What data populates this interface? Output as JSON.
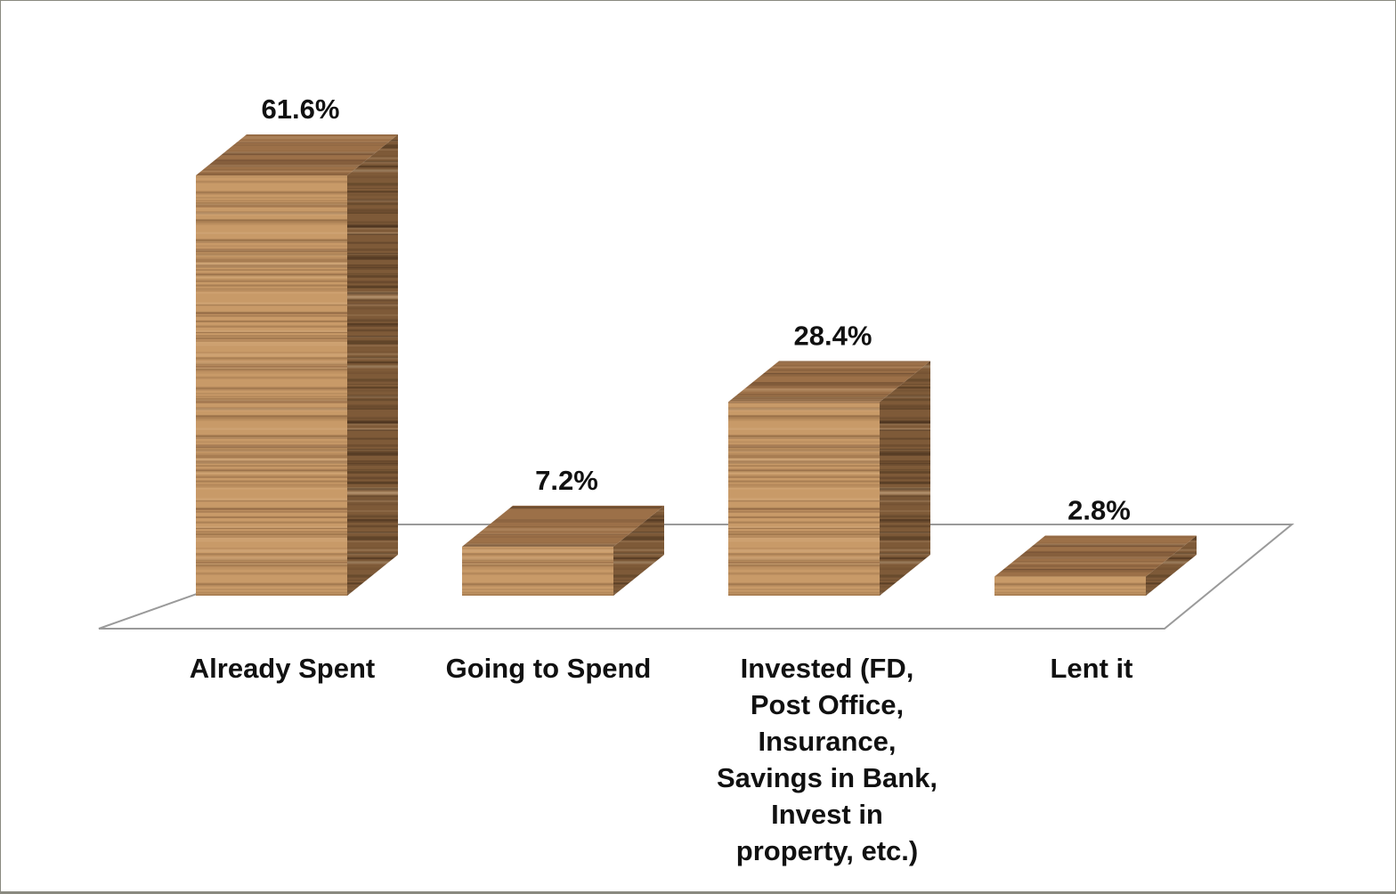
{
  "chart_data": {
    "type": "bar",
    "style": "3d-column",
    "categories": [
      [
        "Already Spent"
      ],
      [
        "Going to Spend"
      ],
      [
        "Invested (FD,",
        "Post Office,",
        "Insurance,",
        "Savings in Bank,",
        "Invest in",
        "property, etc.)"
      ],
      [
        "Lent it"
      ]
    ],
    "values": [
      61.6,
      7.2,
      28.4,
      2.8
    ],
    "value_labels": [
      "61.6%",
      "7.2%",
      "28.4%",
      "2.8%"
    ],
    "title": "",
    "xlabel": "",
    "ylabel": "",
    "ylim": [
      0,
      61.6
    ],
    "grid": false,
    "legend": "none",
    "colors": {
      "bar_front": "#c89a68",
      "bar_top": "#9c7048",
      "bar_side": "#7e5a38",
      "grain_dark": "#6e4a2c",
      "floor_line": "#9a9a9a",
      "text": "#111111"
    }
  }
}
